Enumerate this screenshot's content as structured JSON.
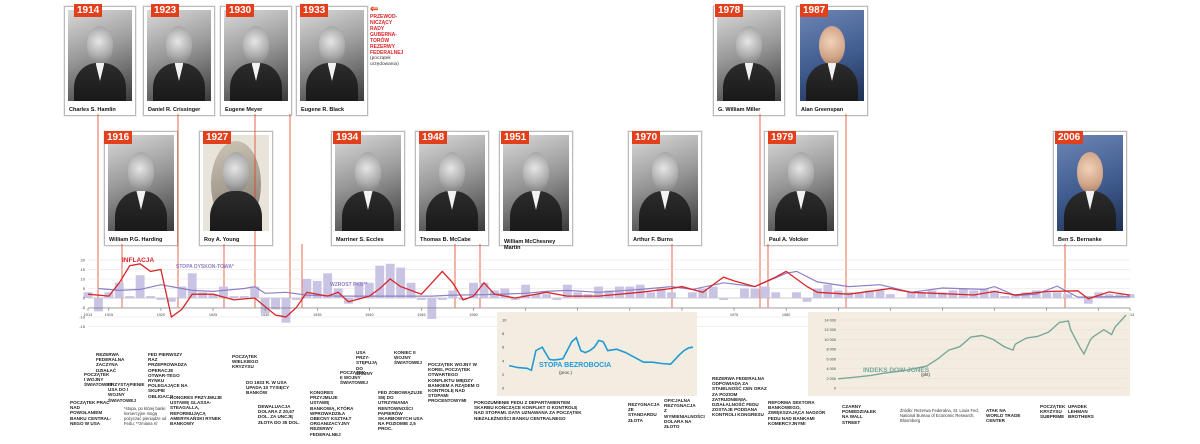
{
  "header_note": {
    "title_lines": [
      "PRZEWOD-",
      "NICZĄCY",
      "RADY",
      "GUBERNA-",
      "TORÓW",
      "REZERWY",
      "FEDERALNEJ"
    ],
    "sub_lines": [
      "(początek",
      "urzędowania)"
    ]
  },
  "top_portraits": [
    {
      "year": "1914",
      "name": "Charles S. Hamlin"
    },
    {
      "year": "1923",
      "name": "Daniel R. Crissinger"
    },
    {
      "year": "1930",
      "name": "Eugene Meyer"
    },
    {
      "year": "1933",
      "name": "Eugene R. Black"
    },
    {
      "year": "1978",
      "name": "G. William Miller"
    },
    {
      "year": "1987",
      "name": "Alan Greenspan"
    }
  ],
  "mid_portraits": [
    {
      "year": "1916",
      "name": "William P.G. Harding"
    },
    {
      "year": "1927",
      "name": "Roy A. Young"
    },
    {
      "year": "1934",
      "name": "Marriner S. Eccles"
    },
    {
      "year": "1948",
      "name": "Thomas B. McCabe"
    },
    {
      "year": "1951",
      "name": "William McChesney Martin"
    },
    {
      "year": "1970",
      "name": "Arthur F. Burns"
    },
    {
      "year": "1979",
      "name": "Paul A. Volcker"
    },
    {
      "year": "2006",
      "name": "Ben S. Bernanke"
    }
  ],
  "series_labels": {
    "inflation": "INFLACJA",
    "discount_rate": "STOPA DYSKON-TOWA*",
    "gdp": "WZROST PKB**",
    "unemployment": "STOPA BEZROBOCIA",
    "unemployment_unit": "(proc.)",
    "dowjones": "INDEKS DOW JONES",
    "dowjones_unit": "(pkt)"
  },
  "unemployment_axis": [
    "10",
    "8",
    "6",
    "4",
    "2",
    "0"
  ],
  "dowjones_axis": [
    "14 000",
    "12 000",
    "10 000",
    "8 000",
    "6 000",
    "4 000",
    "2 000",
    "0"
  ],
  "left_axis": [
    "20",
    "15",
    "10",
    "5",
    "0",
    "-5",
    "-10",
    "-15"
  ],
  "year_ticks": [
    "1913",
    "1915",
    "1920",
    "1925",
    "1930",
    "1935",
    "1940",
    "1945",
    "1950",
    "1955",
    "1960",
    "1965",
    "1970",
    "1975",
    "1980",
    "1985",
    "1990",
    "1995",
    "2000",
    "2005",
    "2010",
    "2013"
  ],
  "events": [
    "POCZĄTEK PRAC NAD POWOŁANIEM BANKU CENTRAL-NEGO W USA",
    "POCZĄTEK I WOJNY ŚWIATOWEJ",
    "REZERWA FEDERALNA ZACZYNA DZIAŁAĆ",
    "PRZYSTĄPIENIE USA DO I WOJNY ŚWIATOWEJ",
    "FED PIERWSZY RAZ PRZEPROWADZA OPERACJE OTWAR-TEGO RYNKU POLEGAJĄCE NA SKUPIE OBLIGACJI",
    "KONGRES PRZYJMUJE USTAWĘ GLASSA-STEAGALLA, REFORMUJĄCĄ AMERYKAŃSKI RYNEK BANKOWY",
    "POCZĄTEK WIELKIEGO KRYZYSU",
    "DO 1933 R. W USA UPADA 10 TYSIĘCY BANKÓW",
    "DEWALUACJA DOLARA Z 20,67 DOL. ZA UNCJĘ ZŁOTA DO 35 DOL.",
    "KONGRES PRZYJMUJE USTAWĘ BANKOWĄ, KTÓRA WPROWADZIŁA OBECNY KSZTAŁT ORGANIZACYJNY REZERWY FEDERALNEJ",
    "POCZĄTEK II WOJNY ŚWIATOWEJ",
    "USA PRZY-STĘPUJĄ DO WOJNY",
    "KONIEC II WOJNY ŚWIATOWEJ",
    "FED ZOBOWIĄZUJE SIĘ DO UTRZYMANIA RENTOWNOŚCI PAPIERÓW SKARBOWYCH USA NA POZIOMIE 2,5 PROC.",
    "POCZĄTEK WOJNY W KOREI, POCZĄTEK OTWARTEGO KONFLIKTU MIĘDZY BANKIEM A RZĄDEM O KONTROLĘ NAD STOPAMI PROCENTOWYMI",
    "POROZUMIENIE FEDU Z DEPARTAMENTEM SKARBU KOŃCZĄCE KONFLIKT O KONTROLĘ NAD STOPAMI. DATA UZNAWANA ZA POCZĄTEK NIEZALEŻNOŚCI BANKU CENTRALNEGO",
    "REZYGNACJA ZE STANDARDU ZŁOTA",
    "OFICJALNA REZYGNACJA Z WYMIENIALNOŚCI DOLARA NA ZŁOTO",
    "REZERWA FEDERALNA ODPOWIADA ZA STABILNOŚĆ CEN ORAZ ZA POZIOM ZATRUDNIENIA. DZIAŁALNOŚĆ FEDU ZOSTAJE PODDANA KONTROLI KONGRESU",
    "REFORMA SEKTORA BANKOWEGO, ZWIĘKSZAJĄCA NADZÓR FEDU NAD BANKAMI KOMERCYJNYMI",
    "CZARNY PONIEDZIAŁEK NA WALL STREET",
    "ATAK NA WORLD TRADE CENTER",
    "POCZĄTEK KRYZYSU SUBPRIME",
    "UPADEK LEHMAN BROTHERS"
  ],
  "footnotes": {
    "left": "*stopa, po której banki komercyjne mogą pożyczać pieniądze od Fedu; **zmiana r/r",
    "sources": "Źródło: Rezerwa Federalna, St. Louis Fed, National Bureau of Economic Research, Bloomberg"
  },
  "colors": {
    "accent": "#e2401c",
    "inflation": "#d8262b",
    "discount_rate": "#8f7fc4",
    "gdp_bars": "#b8b2db",
    "unemployment": "#1f9ad6",
    "dowjones": "#7aa79a",
    "panel_bg": "#f3ece1"
  }
}
